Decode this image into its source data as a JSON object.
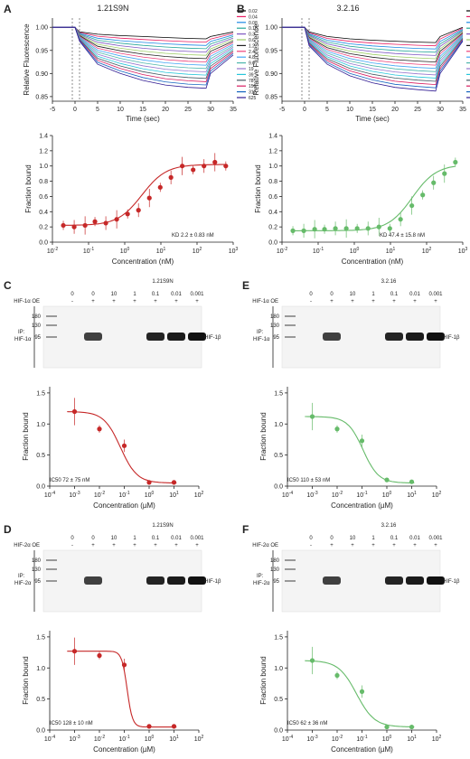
{
  "panels": {
    "A": {
      "letter": "A",
      "title": "1.21S9N"
    },
    "B": {
      "letter": "B",
      "title": "3.2.16"
    },
    "C": {
      "letter": "C",
      "title": "1.21S9N",
      "oe_label": "HIF-1α OE",
      "ip_label": "IP:",
      "ip_target": "HIF-1α",
      "band_label": "HIF-1β",
      "ic50": "IC50 72 ± 75 nM"
    },
    "D": {
      "letter": "D",
      "title": "1.21S9N",
      "oe_label": "HIF-2α OE",
      "ip_label": "IP:",
      "ip_target": "HIF-2α",
      "band_label": "HIF-1β",
      "ic50": "IC50 128 ± 10 nM"
    },
    "E": {
      "letter": "E",
      "title": "3.2.16",
      "oe_label": "HIF-1α OE",
      "ip_label": "IP:",
      "ip_target": "HIF-1α",
      "band_label": "HIF-1β",
      "ic50": "IC50 110 ± 53 nM"
    },
    "F": {
      "letter": "F",
      "title": "3.2.16",
      "oe_label": "HIF-2α OE",
      "ip_label": "IP:",
      "ip_target": "HIF-2α",
      "band_label": "HIF-1β",
      "ic50": "IC50 62 ± 36 nM"
    }
  },
  "blot": {
    "conc_labels": [
      "0",
      "0",
      "10",
      "1",
      "0.1",
      "0.01",
      "0.001"
    ],
    "oe_signs": [
      "-",
      "+",
      "+",
      "+",
      "+",
      "+",
      "+"
    ],
    "ladder": [
      "180",
      "130",
      "95"
    ]
  },
  "axes": {
    "kinetic_ylabel": "Relative Fluorescence",
    "kinetic_xlabel": "Time (sec)",
    "kinetic_xticks": [
      "-5",
      "0",
      "5",
      "10",
      "15",
      "20",
      "25",
      "30",
      "35"
    ],
    "kinetic_yticks": [
      "1.00",
      "0.95",
      "0.90",
      "0.85"
    ],
    "fraction_ylabel": "Fraction bound",
    "binding_xlabel": "Concentration (nM)",
    "binding_xticks": [
      "10-2",
      "10-1",
      "100",
      "101",
      "102",
      "103"
    ],
    "binding_yticks": [
      "0.0",
      "0.2",
      "0.4",
      "0.6",
      "0.8",
      "1.0",
      "1.2",
      "1.4"
    ],
    "comp_xlabel": "Concentration (µM)",
    "comp_xticks": [
      "10-4",
      "10-3",
      "10-2",
      "10-1",
      "100",
      "101",
      "102"
    ],
    "comp_yticks": [
      "0.0",
      "0.5",
      "1.0",
      "1.5"
    ],
    "legend": [
      "0.02",
      "0.04",
      "0.08",
      "0.15",
      "0.3",
      "0.6",
      "1.2",
      "2.4",
      "4.8",
      "9.6",
      "19",
      "39",
      "78",
      "156",
      "312",
      "625"
    ]
  },
  "kd": {
    "A": "KD 2.2 ± 0.83 nM",
    "B": "KD 47.4 ± 15.8 nM"
  },
  "colors": {
    "red": "#c62828",
    "green": "#66bb6a"
  },
  "chart_data": [
    {
      "type": "line",
      "panel": "A",
      "xlabel": "Time (sec)",
      "ylabel": "Relative Fluorescence",
      "xlim": [
        -5,
        35
      ],
      "ylim": [
        0.84,
        1.02
      ],
      "x": [
        -5,
        0,
        1,
        5,
        10,
        15,
        20,
        25,
        29,
        30,
        35
      ],
      "series": [
        {
          "name": "0.02",
          "values": [
            1,
            1,
            0.99,
            0.985,
            0.982,
            0.98,
            0.978,
            0.976,
            0.975,
            0.98,
            0.99
          ]
        },
        {
          "name": "625",
          "values": [
            1,
            1,
            0.97,
            0.92,
            0.9,
            0.885,
            0.875,
            0.87,
            0.868,
            0.9,
            0.94
          ]
        }
      ]
    },
    {
      "type": "line",
      "panel": "B",
      "xlabel": "Time (sec)",
      "ylabel": "Relative Fluorescence",
      "xlim": [
        -5,
        35
      ],
      "ylim": [
        0.84,
        1.02
      ],
      "x": [
        -5,
        0,
        1,
        5,
        10,
        15,
        20,
        25,
        29,
        30,
        35
      ],
      "series": [
        {
          "name": "0.02",
          "values": [
            1,
            1,
            0.99,
            0.98,
            0.975,
            0.972,
            0.97,
            0.968,
            0.967,
            0.98,
            1.0
          ]
        },
        {
          "name": "625",
          "values": [
            1,
            1,
            0.96,
            0.92,
            0.895,
            0.88,
            0.87,
            0.865,
            0.862,
            0.9,
            0.97
          ]
        }
      ]
    },
    {
      "type": "scatter",
      "panel": "A",
      "xlabel": "Concentration (nM)",
      "ylabel": "Fraction bound",
      "ylim": [
        0,
        1.4
      ],
      "x": [
        0.02,
        0.04,
        0.08,
        0.15,
        0.3,
        0.6,
        1.2,
        2.4,
        4.8,
        9.6,
        19,
        39,
        78,
        156,
        312,
        625
      ],
      "values": [
        0.22,
        0.2,
        0.22,
        0.27,
        0.25,
        0.3,
        0.37,
        0.42,
        0.58,
        0.72,
        0.85,
        1.0,
        0.95,
        1.0,
        1.05,
        1.0
      ]
    },
    {
      "type": "scatter",
      "panel": "B",
      "xlabel": "Concentration (nM)",
      "ylabel": "Fraction bound",
      "ylim": [
        0,
        1.4
      ],
      "x": [
        0.02,
        0.04,
        0.08,
        0.15,
        0.3,
        0.6,
        1.2,
        2.4,
        4.8,
        9.6,
        19,
        39,
        78,
        156,
        312,
        625
      ],
      "values": [
        0.15,
        0.15,
        0.17,
        0.17,
        0.18,
        0.18,
        0.18,
        0.18,
        0.2,
        0.18,
        0.3,
        0.48,
        0.62,
        0.78,
        0.9,
        1.05
      ]
    },
    {
      "type": "scatter",
      "panel": "C",
      "xlabel": "Concentration (µM)",
      "ylabel": "Fraction bound",
      "ylim": [
        0,
        1.6
      ],
      "x": [
        0.001,
        0.01,
        0.1,
        1,
        10
      ],
      "values": [
        1.2,
        0.92,
        0.65,
        0.06,
        0.06
      ]
    },
    {
      "type": "scatter",
      "panel": "D",
      "xlabel": "Concentration (µM)",
      "ylabel": "Fraction bound",
      "ylim": [
        0,
        1.6
      ],
      "x": [
        0.001,
        0.01,
        0.1,
        1,
        10
      ],
      "values": [
        1.27,
        1.2,
        1.05,
        0.06,
        0.06
      ]
    },
    {
      "type": "scatter",
      "panel": "E",
      "xlabel": "Concentration (µM)",
      "ylabel": "Fraction bound",
      "ylim": [
        0,
        1.6
      ],
      "x": [
        0.001,
        0.01,
        0.1,
        1,
        10
      ],
      "values": [
        1.12,
        0.92,
        0.73,
        0.1,
        0.07
      ]
    },
    {
      "type": "scatter",
      "panel": "F",
      "xlabel": "Concentration (µM)",
      "ylabel": "Fraction bound",
      "ylim": [
        0,
        1.6
      ],
      "x": [
        0.001,
        0.01,
        0.1,
        1,
        10
      ],
      "values": [
        1.12,
        0.88,
        0.62,
        0.05,
        0.05
      ]
    }
  ]
}
